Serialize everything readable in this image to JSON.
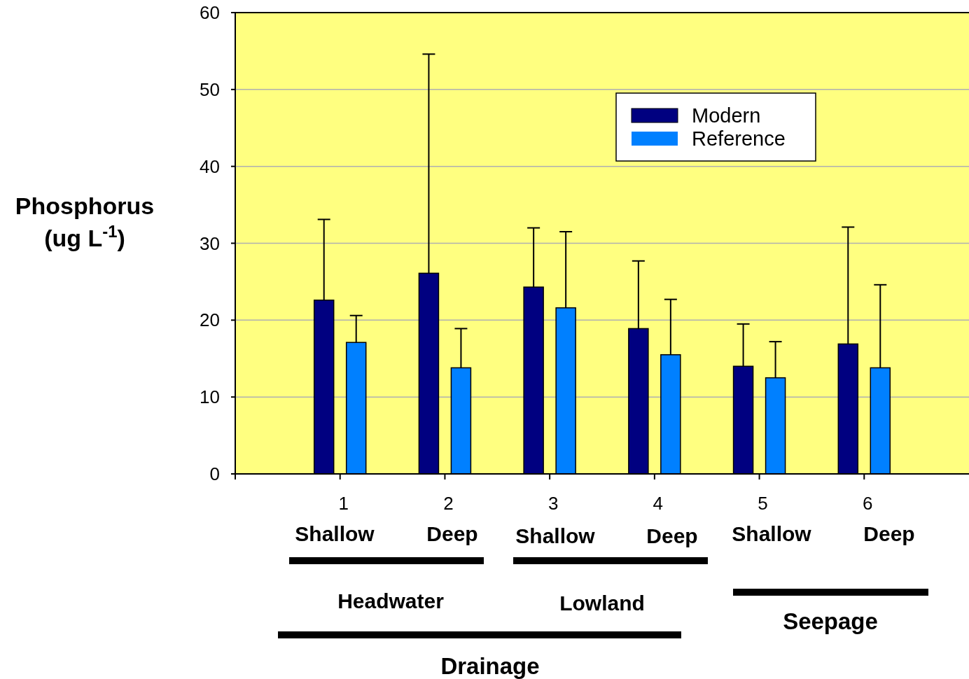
{
  "chart_data": {
    "type": "bar",
    "ylabel": "Phosphorus (ug L$^{-1}$)",
    "categories": [
      "1",
      "2",
      "3",
      "4",
      "5",
      "6"
    ],
    "series": [
      {
        "name": "Modern",
        "color": "#000080",
        "values": [
          22.6,
          26.1,
          24.3,
          18.9,
          14.0,
          16.9
        ],
        "errors": [
          [
            22.6,
            33.1
          ],
          [
            26.1,
            54.6
          ],
          [
            24.3,
            32.0
          ],
          [
            18.9,
            27.7
          ],
          [
            14.0,
            19.5
          ],
          [
            16.9,
            32.1
          ]
        ]
      },
      {
        "name": "Reference",
        "color": "#0080ff",
        "values": [
          17.1,
          13.8,
          21.6,
          15.5,
          12.5,
          13.8
        ],
        "errors": [
          [
            17.1,
            20.6
          ],
          [
            13.8,
            18.9
          ],
          [
            21.6,
            31.5
          ],
          [
            15.5,
            22.7
          ],
          [
            12.5,
            17.2
          ],
          [
            13.8,
            24.6
          ]
        ]
      }
    ],
    "ylim": [
      0,
      60
    ],
    "yticks": [
      0,
      10,
      20,
      30,
      40,
      50,
      60
    ],
    "grid": "y",
    "legend": "top right",
    "annotations": [
      "Shallow",
      "Deep",
      "Shallow",
      "Deep",
      "Shallow",
      "Deep",
      "Headwater",
      "Lowland",
      "Seepage",
      "Drainage"
    ]
  }
}
